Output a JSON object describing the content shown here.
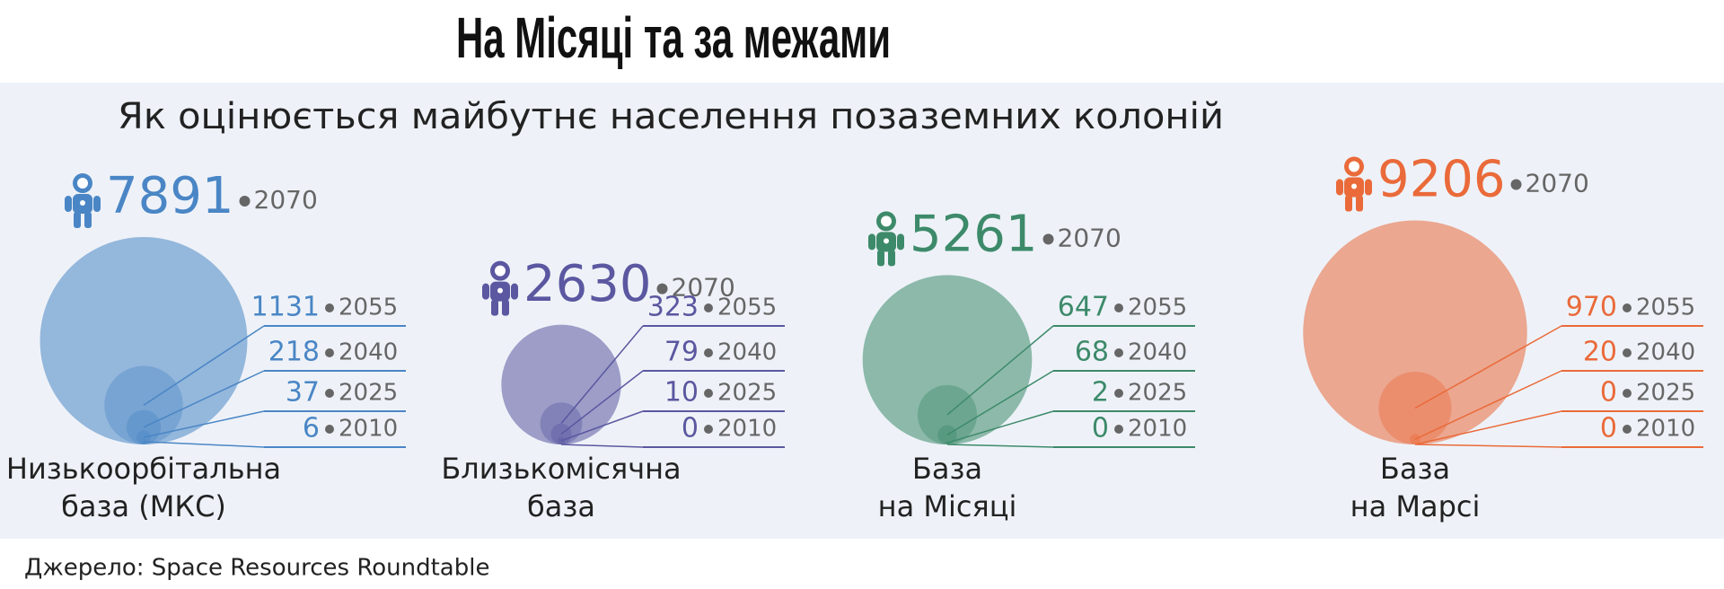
{
  "chart_data": {
    "type": "nested-circles",
    "title": "На Місяці та за межами",
    "subtitle": "Як оцінюється майбутнє населення позаземних колоній",
    "source": "Джерело: Space Resources Roundtable",
    "categories": [
      "2010",
      "2025",
      "2040",
      "2055",
      "2070"
    ],
    "series": [
      {
        "name": [
          "Низькоорбітальна",
          "база (МКС)"
        ],
        "color": "#4a86c5",
        "values": [
          6,
          37,
          218,
          1131,
          7891
        ]
      },
      {
        "name": [
          "Близькомісячна",
          "база"
        ],
        "color": "#5b57a0",
        "values": [
          0,
          10,
          79,
          323,
          2630
        ]
      },
      {
        "name": [
          "База",
          "на Місяці"
        ],
        "color": "#3d8a6a",
        "values": [
          0,
          2,
          68,
          647,
          5261
        ]
      },
      {
        "name": [
          "База",
          "на Марсі"
        ],
        "color": "#ea6a3a",
        "values": [
          0,
          0,
          20,
          970,
          9206
        ]
      }
    ]
  }
}
